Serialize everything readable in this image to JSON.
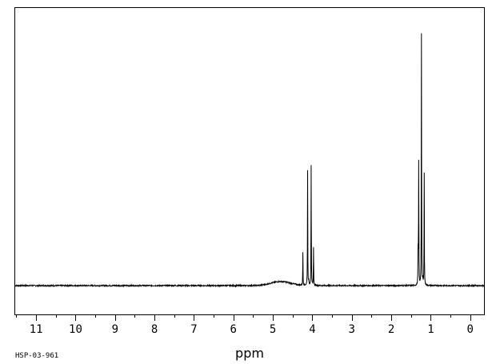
{
  "chart_data": {
    "type": "line",
    "xlabel": "ppm",
    "ylabel": "",
    "x_reversed": true,
    "xlim": [
      11.55,
      -0.35
    ],
    "ylim": [
      0,
      100
    ],
    "ticks": [
      "11",
      "10",
      "9",
      "8",
      "7",
      "6",
      "5",
      "4",
      "3",
      "2",
      "1",
      "0"
    ],
    "grid": false,
    "baseline": 0,
    "broad_hump": {
      "center": 4.8,
      "width": 0.35,
      "height": 1.6
    },
    "series": [
      {
        "peaks": [
          {
            "x": 4.24,
            "y": 13.2
          },
          {
            "x": 4.12,
            "y": 45.5
          },
          {
            "x": 4.09,
            "y": 2.0
          },
          {
            "x": 4.03,
            "y": 47.5
          },
          {
            "x": 3.97,
            "y": 15.2
          },
          {
            "x": 1.32,
            "y": 16.5
          },
          {
            "x": 1.305,
            "y": 49.6
          },
          {
            "x": 1.235,
            "y": 99.5
          },
          {
            "x": 1.2,
            "y": 3.0
          },
          {
            "x": 1.165,
            "y": 44.6
          }
        ]
      }
    ]
  },
  "footer": {
    "sample_id": "HSP-03-961"
  }
}
